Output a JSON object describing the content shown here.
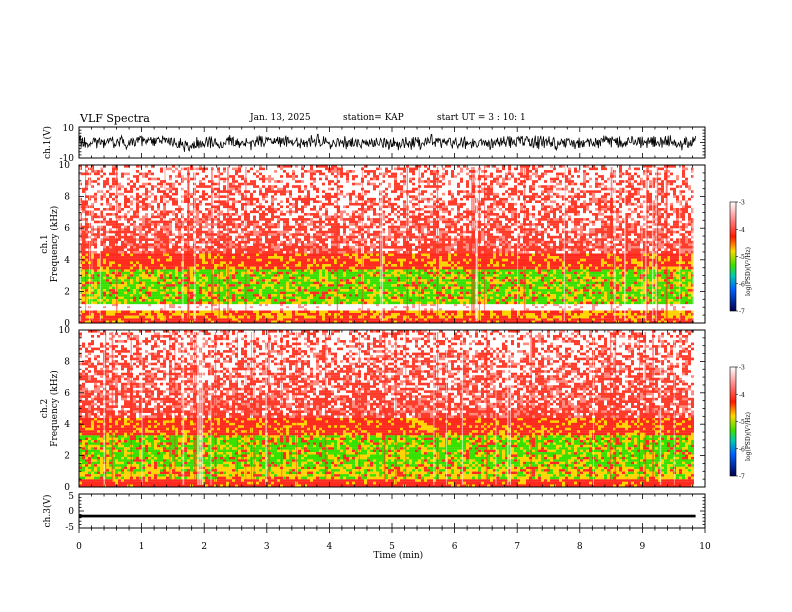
{
  "header": {
    "title": "VLF Spectra",
    "date": "Jan. 13, 2025",
    "station": "station= KAP",
    "start": "start UT =  3 : 10: 1"
  },
  "colors": {
    "spectrogram_red": "#ff2a1e",
    "spectrogram_yellow": "#ffd400",
    "spectrogram_green": "#38e000",
    "trace": "#000000"
  },
  "chart_data": [
    {
      "type": "line",
      "name": "ch1-waveform",
      "ylabel": "ch.1(V)",
      "ylim": [
        -10,
        10
      ],
      "yticks": [
        "10",
        "-10"
      ],
      "xlim": [
        0,
        10
      ],
      "description_of_series": "noisy waveform oscillating roughly between -6 and +6 V across 0–9.85 min",
      "amplitude_range_V": [
        -6,
        6
      ]
    },
    {
      "type": "heatmap",
      "name": "ch1-spectrogram",
      "ylabel": "ch.1\nFrequency (kHz)",
      "ylim": [
        0,
        10
      ],
      "yticks": [
        "0",
        "2",
        "4",
        "6",
        "8",
        "10"
      ],
      "xlim": [
        0,
        10
      ],
      "data_extent_min": 9.85,
      "bands_kHz": [
        {
          "from": 0.0,
          "to": 0.3,
          "level": "red"
        },
        {
          "from": 0.3,
          "to": 0.8,
          "level": "yellow-red"
        },
        {
          "from": 0.8,
          "to": 1.2,
          "level": "white"
        },
        {
          "from": 1.2,
          "to": 3.4,
          "level": "green-yellow"
        },
        {
          "from": 3.4,
          "to": 4.4,
          "level": "red-yellow"
        },
        {
          "from": 4.4,
          "to": 10.0,
          "level": "sparse-red"
        }
      ]
    },
    {
      "type": "heatmap",
      "name": "ch2-spectrogram",
      "ylabel": "ch.2\nFrequency (kHz)",
      "ylim": [
        0,
        10
      ],
      "yticks": [
        "0",
        "2",
        "4",
        "6",
        "8",
        "10"
      ],
      "xlim": [
        0,
        10
      ],
      "data_extent_min": 9.85,
      "bands_kHz": [
        {
          "from": 0.0,
          "to": 0.5,
          "level": "red"
        },
        {
          "from": 0.5,
          "to": 1.3,
          "level": "yellow"
        },
        {
          "from": 1.3,
          "to": 3.3,
          "level": "green-yellow"
        },
        {
          "from": 3.3,
          "to": 4.4,
          "level": "red-yellow"
        },
        {
          "from": 4.4,
          "to": 10.0,
          "level": "sparse-red"
        }
      ]
    },
    {
      "type": "line",
      "name": "ch3-waveform",
      "ylabel": "ch.3(V)",
      "ylim": [
        -5,
        5
      ],
      "yticks": [
        "5",
        "0",
        "-5"
      ],
      "xlim": [
        0,
        10
      ],
      "level_V": -1.5,
      "thickness_V": 0.8
    }
  ],
  "xaxis": {
    "label": "Time (min)",
    "ticks": [
      "0",
      "1",
      "2",
      "3",
      "4",
      "5",
      "6",
      "7",
      "8",
      "9",
      "10"
    ]
  },
  "colorbar": {
    "label": "log(PSD)(V²/Hz)",
    "ticks": [
      "-3",
      "-4",
      "-5",
      "-6",
      "-7"
    ],
    "range": [
      -7,
      -3
    ]
  }
}
